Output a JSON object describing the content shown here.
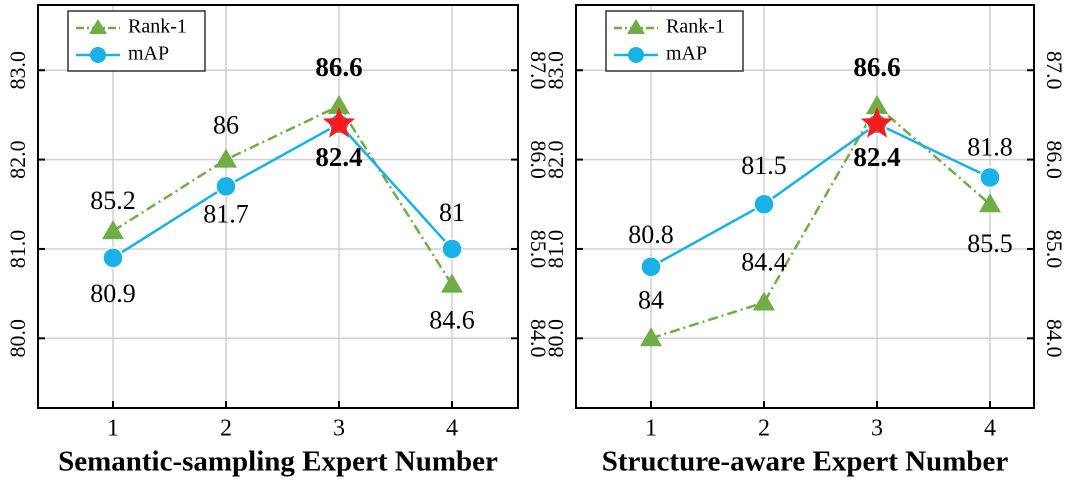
{
  "chart_data": [
    {
      "type": "line",
      "x_label": "Semantic-sampling Expert Number",
      "categories": [
        "1",
        "2",
        "3",
        "4"
      ],
      "series": [
        {
          "name": "Rank-1",
          "color": "#70ad47",
          "axis": "y2",
          "values": [
            85.2,
            86.0,
            86.6,
            84.6
          ]
        },
        {
          "name": "mAP",
          "color": "#1ab0e8",
          "values": [
            80.9,
            81.7,
            82.4,
            81.0
          ]
        }
      ],
      "ylim": [
        79.22,
        83.73
      ],
      "yticks": [
        {
          "value": 80,
          "label": "80.0"
        },
        {
          "value": 81,
          "label": "81.0"
        },
        {
          "value": 82,
          "label": "82.0"
        },
        {
          "value": 83,
          "label": "83.0"
        }
      ],
      "y2lim": [
        83.22,
        87.73
      ],
      "y2ticks": [
        {
          "value": 84,
          "label": "84.0"
        },
        {
          "value": 85,
          "label": "85.0"
        },
        {
          "value": 86,
          "label": "86.0"
        },
        {
          "value": 87,
          "label": "87.0"
        }
      ],
      "grid": true,
      "legend": "upper left"
    },
    {
      "type": "line",
      "x_label": "Structure-aware Expert Number",
      "categories": [
        "1",
        "2",
        "3",
        "4"
      ],
      "series": [
        {
          "name": "Rank-1",
          "color": "#70ad47",
          "axis": "y2",
          "values": [
            84.0,
            84.4,
            86.6,
            85.5
          ]
        },
        {
          "name": "mAP",
          "color": "#1ab0e8",
          "values": [
            80.8,
            81.5,
            82.4,
            81.8
          ]
        }
      ],
      "ylim": [
        79.22,
        83.73
      ],
      "yticks": [
        {
          "value": 80,
          "label": "80.0"
        },
        {
          "value": 81,
          "label": "81.0"
        },
        {
          "value": 82,
          "label": "82.0"
        },
        {
          "value": 83,
          "label": "83.0"
        }
      ],
      "y2lim": [
        83.22,
        87.73
      ],
      "y2ticks": [
        {
          "value": 84,
          "label": "84.0"
        },
        {
          "value": 85,
          "label": "85.0"
        },
        {
          "value": 86,
          "label": "86.0"
        },
        {
          "value": 87,
          "label": "87.0"
        }
      ],
      "grid": true,
      "legend": "upper left"
    }
  ]
}
